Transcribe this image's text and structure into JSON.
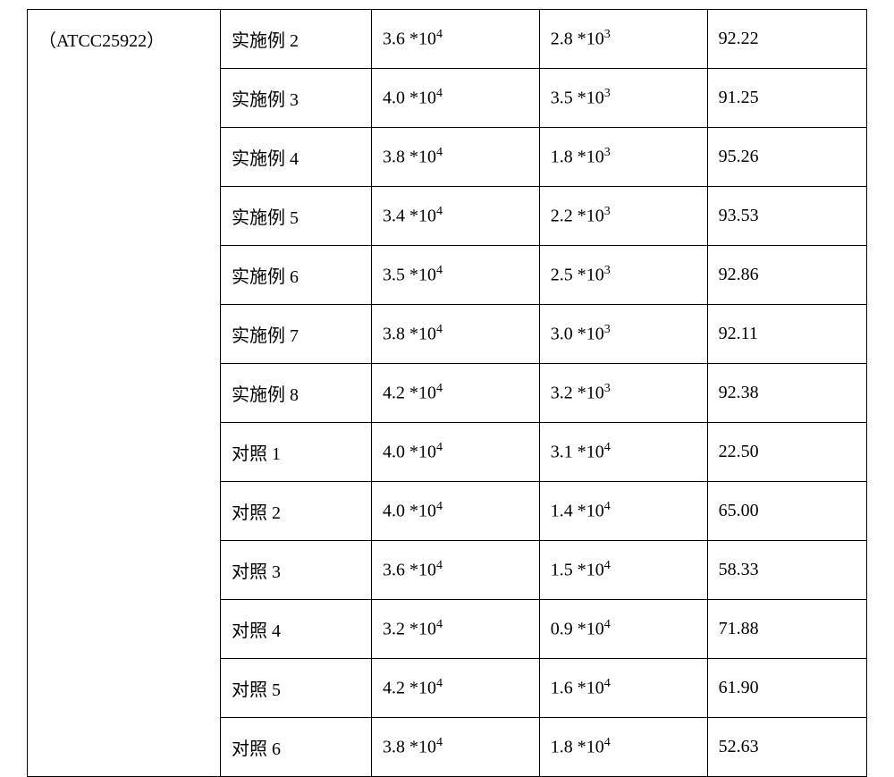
{
  "table": {
    "strain_label": "（ATCC25922）",
    "rows": [
      {
        "example": "实施例 2",
        "val1_base": "3.6 *10",
        "val1_exp": "4",
        "val2_base": "2.8 *10",
        "val2_exp": "3",
        "pct": "92.22"
      },
      {
        "example": "实施例 3",
        "val1_base": "4.0 *10",
        "val1_exp": "4",
        "val2_base": "3.5 *10",
        "val2_exp": "3",
        "pct": "91.25"
      },
      {
        "example": "实施例 4",
        "val1_base": "3.8 *10",
        "val1_exp": "4",
        "val2_base": "1.8 *10",
        "val2_exp": "3",
        "pct": "95.26"
      },
      {
        "example": "实施例 5",
        "val1_base": "3.4 *10",
        "val1_exp": "4",
        "val2_base": "2.2 *10",
        "val2_exp": "3",
        "pct": "93.53"
      },
      {
        "example": "实施例 6",
        "val1_base": "3.5 *10",
        "val1_exp": "4",
        "val2_base": "2.5 *10",
        "val2_exp": "3",
        "pct": "92.86"
      },
      {
        "example": "实施例 7",
        "val1_base": "3.8 *10",
        "val1_exp": "4",
        "val2_base": "3.0 *10",
        "val2_exp": "3",
        "pct": "92.11"
      },
      {
        "example": "实施例 8",
        "val1_base": "4.2 *10",
        "val1_exp": "4",
        "val2_base": "3.2 *10",
        "val2_exp": "3",
        "pct": "92.38"
      },
      {
        "example": "对照 1",
        "val1_base": "4.0 *10",
        "val1_exp": "4",
        "val2_base": "3.1 *10",
        "val2_exp": "4",
        "pct": "22.50"
      },
      {
        "example": "对照 2",
        "val1_base": "4.0 *10",
        "val1_exp": "4",
        "val2_base": "1.4 *10",
        "val2_exp": "4",
        "pct": "65.00"
      },
      {
        "example": "对照 3",
        "val1_base": "3.6 *10",
        "val1_exp": "4",
        "val2_base": "1.5 *10",
        "val2_exp": "4",
        "pct": "58.33"
      },
      {
        "example": "对照 4",
        "val1_base": "3.2 *10",
        "val1_exp": "4",
        "val2_base": "0.9 *10",
        "val2_exp": "4",
        "pct": "71.88"
      },
      {
        "example": "对照 5",
        "val1_base": "4.2 *10",
        "val1_exp": "4",
        "val2_base": "1.6 *10",
        "val2_exp": "4",
        "pct": "61.90"
      },
      {
        "example": "对照 6",
        "val1_base": "3.8 *10",
        "val1_exp": "4",
        "val2_base": "1.8 *10",
        "val2_exp": "4",
        "pct": "52.63"
      }
    ],
    "colors": {
      "border": "#000000",
      "text": "#000000",
      "background": "#ffffff"
    },
    "font_size_pt": 15,
    "col_widths_pct": [
      23,
      18,
      20,
      20,
      19
    ]
  }
}
